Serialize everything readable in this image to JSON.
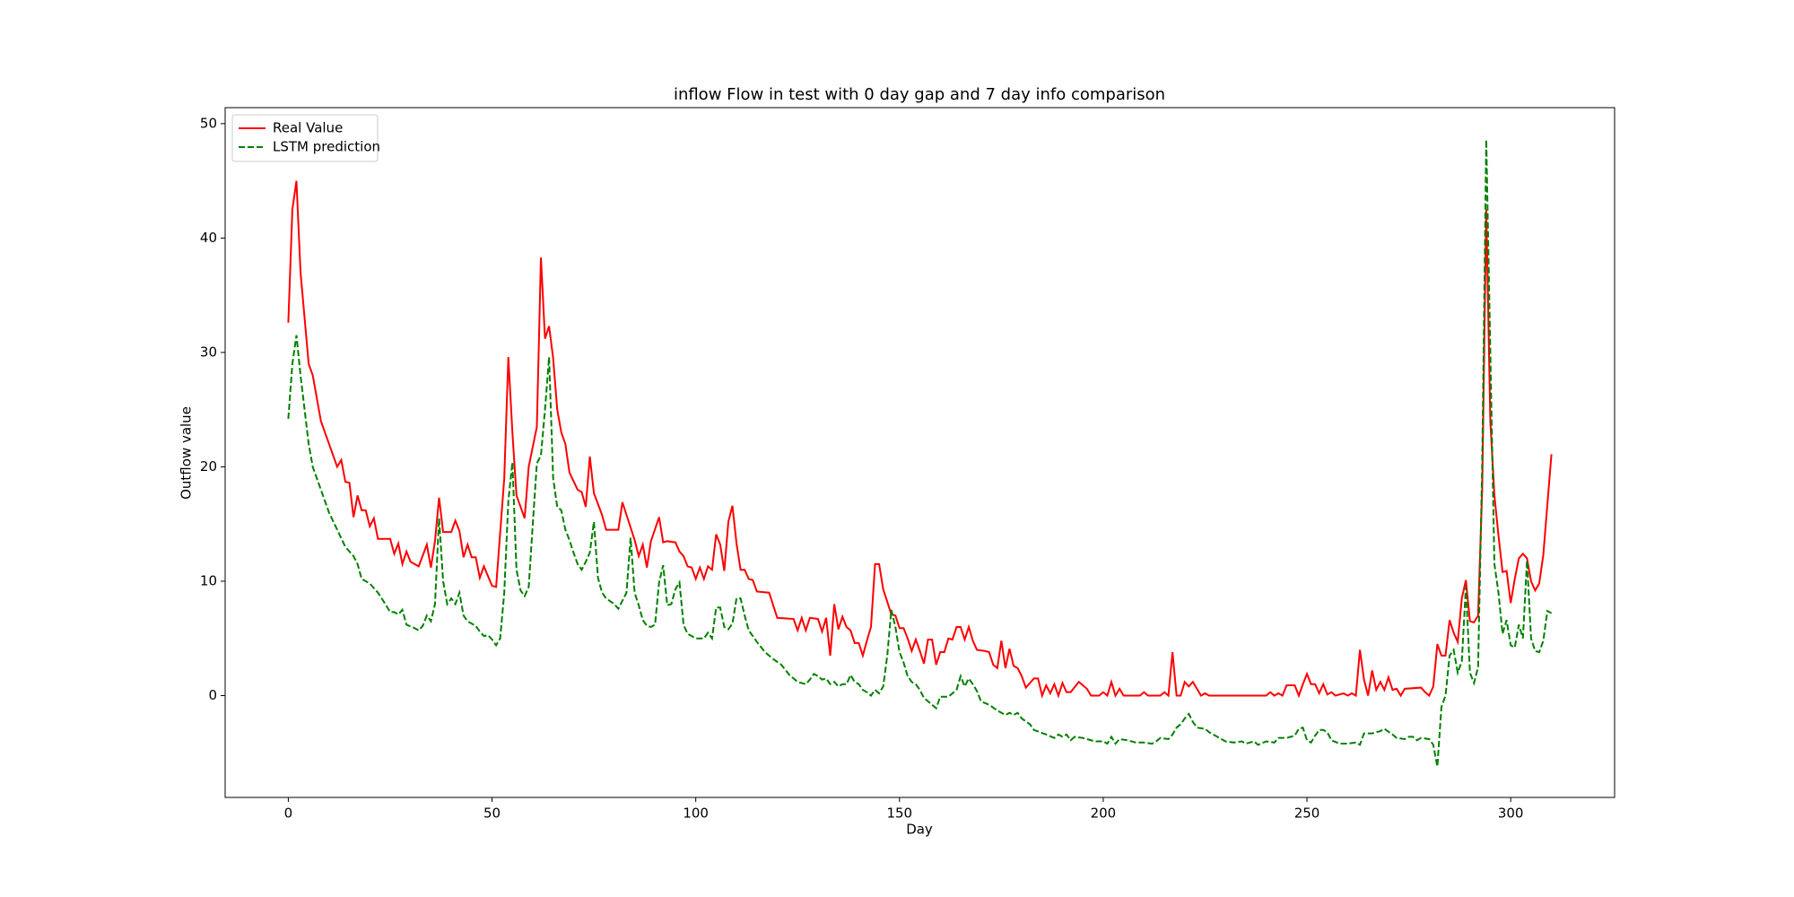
{
  "chart_data": {
    "type": "line",
    "title": "inflow Flow in test with 0 day gap and 7 day info comparison",
    "x_label": "Day",
    "y_label": "Outflow value",
    "xlim": [
      -15.5,
      325.5
    ],
    "ylim": [
      -8.9,
      51.4
    ],
    "xticks": [
      0,
      50,
      100,
      150,
      200,
      250,
      300
    ],
    "yticks": [
      0,
      10,
      20,
      30,
      40,
      50
    ],
    "legend": "upper left",
    "series": [
      {
        "name": "Real Value",
        "color": "#ff0000",
        "linestyle": "solid",
        "x": [
          0,
          1,
          2,
          3,
          5,
          6,
          8,
          10,
          12,
          13,
          14,
          15,
          16,
          17,
          18,
          19,
          20,
          21,
          22,
          25,
          26,
          27,
          28,
          29,
          30,
          32,
          34,
          35,
          36,
          37,
          38,
          40,
          41,
          42,
          43,
          44,
          45,
          46,
          47,
          48,
          50,
          51,
          53,
          54,
          55,
          56,
          58,
          59,
          61,
          62,
          63,
          64,
          65,
          66,
          67,
          68,
          69,
          71,
          72,
          73,
          74,
          75,
          77,
          78,
          81,
          82,
          83,
          85,
          86,
          87,
          88,
          89,
          91,
          92,
          93,
          95,
          96,
          97,
          98,
          99,
          100,
          101,
          102,
          103,
          104,
          105,
          106,
          107,
          108,
          109,
          110,
          111,
          112,
          113,
          114,
          115,
          118,
          120,
          124,
          125,
          126,
          127,
          128,
          130,
          131,
          132,
          133,
          134,
          135,
          136,
          137,
          138,
          139,
          140,
          141,
          142,
          143,
          144,
          145,
          146,
          147,
          148,
          149,
          150,
          151,
          152,
          153,
          154,
          155,
          156,
          157,
          158,
          159,
          160,
          161,
          162,
          163,
          164,
          165,
          166,
          167,
          168,
          169,
          171,
          172,
          173,
          174,
          175,
          176,
          177,
          178,
          179,
          180,
          181,
          183,
          184,
          185,
          186,
          187,
          188,
          189,
          190,
          191,
          192,
          194,
          195,
          196,
          197,
          199,
          200,
          201,
          202,
          203,
          204,
          205,
          209,
          210,
          211,
          214,
          215,
          216,
          217,
          218,
          219,
          220,
          221,
          222,
          223,
          224,
          225,
          226,
          240,
          241,
          242,
          243,
          244,
          245,
          247,
          248,
          249,
          250,
          251,
          252,
          253,
          254,
          255,
          256,
          257,
          259,
          260,
          261,
          262,
          263,
          264,
          265,
          266,
          267,
          268,
          269,
          270,
          271,
          272,
          273,
          274,
          278,
          279,
          280,
          281,
          282,
          283,
          284,
          285,
          286,
          287,
          288,
          289,
          290,
          291,
          292,
          293,
          294,
          295,
          296,
          297,
          298,
          299,
          300,
          301,
          302,
          303,
          304,
          305,
          306,
          307,
          308,
          310
        ],
        "values": [
          32.6,
          42.5,
          45,
          37,
          29,
          28,
          24,
          22,
          20,
          20.6,
          18.7,
          18.6,
          15.6,
          17.5,
          16.2,
          16.2,
          14.8,
          15.5,
          13.7,
          13.7,
          12.4,
          13.3,
          11.5,
          12.6,
          11.7,
          11.3,
          13.2,
          11.2,
          13.5,
          17.3,
          14.3,
          14.3,
          15.3,
          14.4,
          12.1,
          13.2,
          12.1,
          12.1,
          10.3,
          11.3,
          9.6,
          9.5,
          19,
          29.6,
          23,
          17.5,
          15.5,
          20,
          23.5,
          38.3,
          31.2,
          32.3,
          29.5,
          25,
          23,
          22,
          19.5,
          18,
          17.8,
          16.5,
          20.9,
          17.7,
          15.8,
          14.5,
          14.5,
          16.9,
          15.8,
          13.6,
          12.2,
          13.2,
          11.2,
          13.5,
          15.6,
          13.4,
          13.5,
          13.4,
          12.6,
          12.2,
          11.3,
          11.2,
          10.2,
          11.2,
          10.2,
          11.3,
          11,
          14.1,
          13.2,
          10.9,
          15.2,
          16.6,
          13.3,
          11,
          11,
          10.2,
          10.1,
          9.1,
          9,
          6.8,
          6.7,
          5.7,
          6.8,
          5.7,
          6.8,
          6.7,
          5.6,
          6.8,
          3.5,
          8,
          5.8,
          6.9,
          6,
          5.7,
          4.6,
          4.6,
          3.5,
          4.8,
          6,
          11.5,
          11.5,
          9.3,
          8.2,
          7.1,
          7,
          5.9,
          5.9,
          5,
          3.9,
          4.9,
          3.9,
          2.8,
          4.9,
          4.9,
          2.7,
          3.8,
          3.8,
          5,
          4.9,
          6,
          6,
          4.9,
          6,
          4.8,
          4,
          3.9,
          3.8,
          2.7,
          2.4,
          4.8,
          2.4,
          4.1,
          2.6,
          2.4,
          1.7,
          0.7,
          1.5,
          1.5,
          0,
          0.9,
          0.2,
          1,
          0,
          1.1,
          0.3,
          0.3,
          1.2,
          0.9,
          0.6,
          0,
          0,
          0.3,
          0,
          1.2,
          0,
          0.6,
          0,
          0,
          0.3,
          0,
          0,
          0.3,
          0,
          3.8,
          0,
          0,
          1.2,
          0.8,
          1.2,
          0.6,
          0,
          0.2,
          0,
          0,
          0.3,
          0,
          0.2,
          0,
          0.9,
          0.9,
          0,
          1,
          1.9,
          1,
          1,
          0.2,
          1,
          0.1,
          0.3,
          0,
          0.2,
          0,
          0.2,
          0,
          4,
          1.4,
          0,
          2.2,
          0.5,
          1.2,
          0.5,
          1.6,
          0.5,
          0.6,
          0,
          0.6,
          0.7,
          0.3,
          0,
          0.8,
          4.5,
          3.5,
          3.5,
          6.6,
          5.5,
          4.7,
          8.5,
          10.1,
          6.5,
          6.4,
          7,
          18,
          42.5,
          24,
          17.5,
          14,
          10.8,
          10.9,
          8.1,
          10.2,
          12,
          12.4,
          12,
          10,
          9.2,
          9.8,
          12.3,
          21.1
        ]
      },
      {
        "name": "LSTM prediction",
        "color": "#008000",
        "linestyle": "dashed",
        "x": [
          0,
          1,
          2,
          3,
          4,
          5,
          6,
          8,
          10,
          12,
          14,
          16,
          17,
          18,
          20,
          22,
          24,
          25,
          26,
          27,
          28,
          29,
          31,
          32,
          33,
          34,
          35,
          36,
          37,
          38,
          39,
          40,
          41,
          42,
          43,
          44,
          46,
          47,
          48,
          49,
          50,
          51,
          52,
          53,
          54,
          55,
          56,
          57,
          58,
          59,
          60,
          61,
          62,
          63,
          64,
          65,
          66,
          67,
          68,
          69,
          70,
          71,
          72,
          73,
          74,
          75,
          76,
          77,
          78,
          80,
          81,
          82,
          83,
          84,
          85,
          86,
          87,
          88,
          89,
          90,
          91,
          92,
          93,
          94,
          95,
          96,
          97,
          98,
          100,
          102,
          103,
          104,
          105,
          106,
          107,
          108,
          109,
          110,
          111,
          112,
          113,
          115,
          117,
          119,
          121,
          123,
          125,
          127,
          128,
          129,
          130,
          131,
          132,
          133,
          134,
          135,
          136,
          137,
          138,
          139,
          140,
          141,
          142,
          143,
          144,
          145,
          146,
          147,
          148,
          149,
          150,
          151,
          152,
          153,
          154,
          155,
          156,
          157,
          158,
          159,
          160,
          162,
          163,
          164,
          165,
          166,
          167,
          168,
          169,
          170,
          172,
          174,
          176,
          177,
          178,
          179,
          180,
          182,
          183,
          186,
          188,
          189,
          190,
          191,
          192,
          193,
          195,
          197,
          198,
          200,
          201,
          202,
          203,
          204,
          206,
          208,
          210,
          212,
          213,
          214,
          216,
          217,
          218,
          219,
          220,
          221,
          222,
          223,
          225,
          226,
          228,
          230,
          232,
          234,
          235,
          237,
          238,
          240,
          242,
          243,
          245,
          247,
          248,
          249,
          250,
          251,
          252,
          253,
          254,
          255,
          256,
          258,
          260,
          262,
          263,
          264,
          266,
          268,
          269,
          271,
          272,
          274,
          275,
          276,
          277,
          278,
          280,
          281,
          282,
          283,
          284,
          285,
          286,
          287,
          288,
          289,
          290,
          291,
          292,
          293,
          294,
          295,
          296,
          297,
          298,
          299,
          300,
          301,
          302,
          303,
          304,
          305,
          306,
          307,
          308,
          309,
          310
        ],
        "values": [
          24.2,
          29,
          31.5,
          28,
          25,
          22,
          20,
          18,
          16,
          14.5,
          13,
          12.2,
          11.5,
          10.2,
          9.8,
          9,
          7.9,
          7.3,
          7.3,
          7.1,
          7.5,
          6.2,
          5.9,
          5.7,
          6.1,
          7,
          6.5,
          8,
          15.5,
          10,
          8,
          8.5,
          8,
          9,
          7,
          6.5,
          6.1,
          5.6,
          5.2,
          5.3,
          4.9,
          4.4,
          5,
          9,
          17,
          20.4,
          11,
          9.2,
          8.7,
          9.5,
          15,
          20.3,
          21,
          25,
          29.6,
          19,
          16.5,
          16.2,
          14.5,
          13.6,
          12.5,
          11.5,
          11,
          11.7,
          12.5,
          15.2,
          10.3,
          9,
          8.5,
          8,
          7.6,
          8.3,
          9,
          13.8,
          9,
          7.9,
          6.6,
          6.1,
          6,
          6.2,
          9.9,
          11.4,
          7.9,
          8,
          9.3,
          9.9,
          6.2,
          5.4,
          5,
          5,
          5.5,
          5,
          7.7,
          7.7,
          6,
          5.8,
          6.3,
          8.5,
          8.5,
          7,
          5.7,
          4.7,
          3.8,
          3.2,
          2.7,
          1.8,
          1.2,
          1,
          1.4,
          1.9,
          1.7,
          1.4,
          1.5,
          1,
          1.2,
          0.8,
          1,
          1,
          1.8,
          1.2,
          1,
          0.5,
          0.3,
          0,
          0.5,
          0.2,
          0.8,
          3.5,
          7.5,
          6,
          3.8,
          2.9,
          1.7,
          1.2,
          1,
          0.5,
          -0.2,
          -0.5,
          -0.8,
          -1.1,
          -0.1,
          -0.1,
          0.2,
          0.5,
          1.7,
          0.8,
          1.5,
          1,
          0.4,
          -0.5,
          -0.8,
          -1.3,
          -1.7,
          -1.5,
          -1.7,
          -1.5,
          -2,
          -2.5,
          -3,
          -3.4,
          -3.7,
          -3.4,
          -3.6,
          -3.4,
          -3.9,
          -3.6,
          -3.7,
          -3.9,
          -4,
          -4,
          -4.2,
          -3.6,
          -4.2,
          -3.8,
          -3.9,
          -4.1,
          -4.1,
          -4.2,
          -4,
          -3.7,
          -3.8,
          -3.4,
          -2.8,
          -2.5,
          -2,
          -1.6,
          -2.3,
          -2.8,
          -2.9,
          -3.2,
          -3.6,
          -4,
          -4.1,
          -4,
          -4.2,
          -4,
          -4.3,
          -4,
          -4.1,
          -3.7,
          -3.7,
          -3.5,
          -2.9,
          -2.8,
          -3.9,
          -4.1,
          -3.5,
          -3,
          -3,
          -3.2,
          -3.9,
          -4.2,
          -4.2,
          -4.1,
          -4.3,
          -3.3,
          -3.3,
          -3.1,
          -2.9,
          -3.4,
          -3.7,
          -3.8,
          -3.6,
          -3.6,
          -3.9,
          -3.7,
          -3.8,
          -4.3,
          -6.2,
          -1,
          0,
          3.5,
          4,
          2,
          3,
          9.5,
          2,
          1.1,
          2.5,
          20,
          48.6,
          30,
          11.5,
          9,
          5.4,
          6.6,
          4.4,
          4.2,
          6.2,
          5,
          11.8,
          5,
          3.9,
          3.8,
          4.8,
          7.4,
          7.2
        ]
      }
    ]
  }
}
